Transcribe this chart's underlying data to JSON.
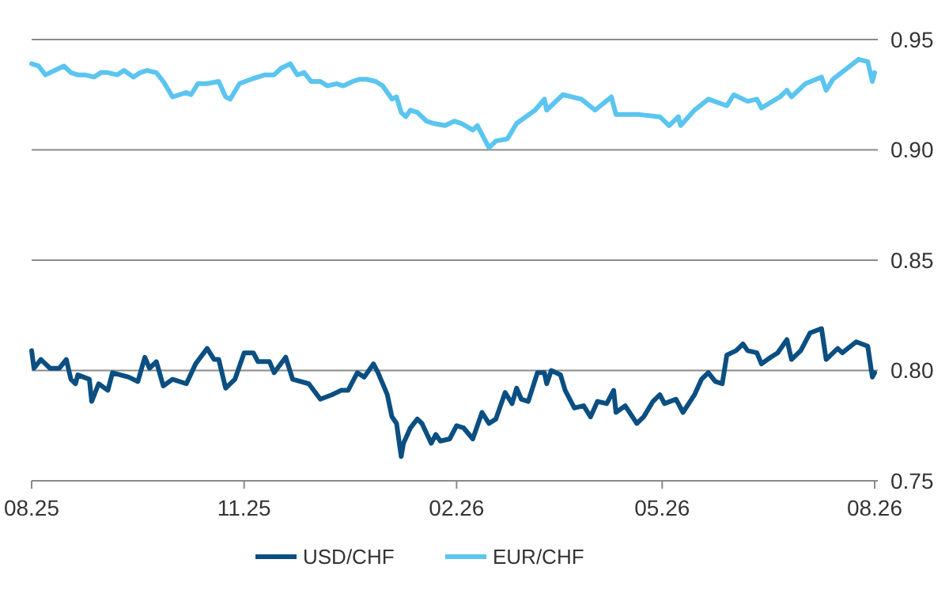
{
  "chart_data": {
    "type": "line",
    "x": [
      "2025-08-01",
      "2025-08-02",
      "2025-08-05",
      "2025-08-09",
      "2025-08-13",
      "2025-08-16",
      "2025-08-18",
      "2025-08-20",
      "2025-08-21",
      "2025-08-26",
      "2025-08-27",
      "2025-08-30",
      "2025-09-03",
      "2025-09-05",
      "2025-09-12",
      "2025-09-16",
      "2025-09-19",
      "2025-09-21",
      "2025-09-24",
      "2025-09-27",
      "2025-10-01",
      "2025-10-07",
      "2025-10-11",
      "2025-10-16",
      "2025-10-19",
      "2025-10-21",
      "2025-10-24",
      "2025-10-28",
      "2025-11-01",
      "2025-11-05",
      "2025-11-07",
      "2025-11-12",
      "2025-11-14",
      "2025-11-19",
      "2025-11-22",
      "2025-11-29",
      "2025-12-04",
      "2025-12-09",
      "2025-12-13",
      "2025-12-16",
      "2025-12-20",
      "2025-12-23",
      "2025-12-27",
      "2025-12-29",
      "2026-01-02",
      "2026-01-04",
      "2026-01-06",
      "2026-01-08",
      "2026-01-09",
      "2026-01-12",
      "2026-01-15",
      "2026-01-17",
      "2026-01-21",
      "2026-01-23",
      "2026-01-25",
      "2026-01-29",
      "2026-02-01",
      "2026-02-04",
      "2026-02-08",
      "2026-02-12",
      "2026-02-15",
      "2026-02-18",
      "2026-02-22",
      "2026-02-25",
      "2026-02-27",
      "2026-03-01",
      "2026-03-04",
      "2026-03-08",
      "2026-03-11",
      "2026-03-12",
      "2026-03-14",
      "2026-03-18",
      "2026-03-20",
      "2026-03-24",
      "2026-03-28",
      "2026-03-31",
      "2026-04-03",
      "2026-04-07",
      "2026-04-10",
      "2026-04-11",
      "2026-04-15",
      "2026-04-20",
      "2026-04-23",
      "2026-04-27",
      "2026-04-30",
      "2026-05-02",
      "2026-05-07",
      "2026-05-10",
      "2026-05-15",
      "2026-05-18",
      "2026-05-21",
      "2026-05-24",
      "2026-05-27",
      "2026-05-29",
      "2026-06-02",
      "2026-06-05",
      "2026-06-07",
      "2026-06-11",
      "2026-06-13",
      "2026-06-17",
      "2026-06-20",
      "2026-06-24",
      "2026-06-26",
      "2026-06-30",
      "2026-07-04",
      "2026-07-09",
      "2026-07-11",
      "2026-07-15",
      "2026-07-16",
      "2026-07-18",
      "2026-07-24",
      "2026-07-29",
      "2026-07-31",
      "2026-08-01"
    ],
    "series": [
      {
        "name": "USD/CHF",
        "color": "#0b4f82",
        "values": [
          0.809,
          0.801,
          0.805,
          0.801,
          0.801,
          0.805,
          0.796,
          0.794,
          0.798,
          0.796,
          0.786,
          0.794,
          0.791,
          0.799,
          0.797,
          0.795,
          0.806,
          0.801,
          0.804,
          0.793,
          0.796,
          0.794,
          0.803,
          0.81,
          0.805,
          0.805,
          0.792,
          0.796,
          0.808,
          0.808,
          0.804,
          0.804,
          0.799,
          0.806,
          0.796,
          0.794,
          0.787,
          0.789,
          0.791,
          0.791,
          0.799,
          0.797,
          0.803,
          0.799,
          0.789,
          0.779,
          0.776,
          0.761,
          0.767,
          0.774,
          0.778,
          0.776,
          0.767,
          0.771,
          0.768,
          0.769,
          0.775,
          0.774,
          0.769,
          0.781,
          0.776,
          0.778,
          0.79,
          0.785,
          0.792,
          0.787,
          0.786,
          0.799,
          0.799,
          0.794,
          0.8,
          0.798,
          0.791,
          0.783,
          0.784,
          0.779,
          0.786,
          0.785,
          0.791,
          0.781,
          0.784,
          0.776,
          0.779,
          0.786,
          0.789,
          0.785,
          0.787,
          0.781,
          0.789,
          0.796,
          0.799,
          0.795,
          0.794,
          0.807,
          0.809,
          0.812,
          0.809,
          0.808,
          0.803,
          0.806,
          0.808,
          0.814,
          0.805,
          0.809,
          0.817,
          0.819,
          0.805,
          0.809,
          0.81,
          0.808,
          0.813,
          0.811,
          0.797,
          0.799
        ]
      },
      {
        "name": "EUR/CHF",
        "color": "#5bc5ef",
        "x": [
          "2025-08-01",
          "2025-08-04",
          "2025-08-07",
          "2025-08-11",
          "2025-08-15",
          "2025-08-18",
          "2025-08-21",
          "2025-08-24",
          "2025-08-28",
          "2025-08-31",
          "2025-09-03",
          "2025-09-07",
          "2025-09-10",
          "2025-09-14",
          "2025-09-17",
          "2025-09-20",
          "2025-09-24",
          "2025-09-27",
          "2025-10-01",
          "2025-10-04",
          "2025-10-07",
          "2025-10-09",
          "2025-10-12",
          "2025-10-16",
          "2025-10-21",
          "2025-10-24",
          "2025-10-26",
          "2025-10-30",
          "2025-11-04",
          "2025-11-07",
          "2025-11-10",
          "2025-11-14",
          "2025-11-17",
          "2025-11-21",
          "2025-11-24",
          "2025-11-27",
          "2025-11-30",
          "2025-12-04",
          "2025-12-07",
          "2025-12-11",
          "2025-12-14",
          "2025-12-18",
          "2025-12-21",
          "2025-12-24",
          "2025-12-28",
          "2025-12-31",
          "2026-01-04",
          "2026-01-06",
          "2026-01-08",
          "2026-01-10",
          "2026-01-12",
          "2026-01-15",
          "2026-01-19",
          "2026-01-22",
          "2026-01-27",
          "2026-01-31",
          "2026-02-03",
          "2026-02-08",
          "2026-02-10",
          "2026-02-15",
          "2026-02-18",
          "2026-02-23",
          "2026-02-27",
          "2026-03-07",
          "2026-03-11",
          "2026-03-12",
          "2026-03-19",
          "2026-03-27",
          "2026-04-02",
          "2026-04-09",
          "2026-04-11",
          "2026-04-21",
          "2026-04-30",
          "2026-05-04",
          "2026-05-08",
          "2026-05-09",
          "2026-05-15",
          "2026-05-21",
          "2026-05-29",
          "2026-06-01",
          "2026-06-07",
          "2026-06-11",
          "2026-06-13",
          "2026-06-21",
          "2026-06-24",
          "2026-06-26",
          "2026-07-02",
          "2026-07-09",
          "2026-07-11",
          "2026-07-14",
          "2026-07-25",
          "2026-07-29",
          "2026-07-31",
          "2026-08-01"
        ],
        "values": [
          0.939,
          0.938,
          0.934,
          0.936,
          0.938,
          0.935,
          0.934,
          0.934,
          0.933,
          0.935,
          0.935,
          0.934,
          0.936,
          0.933,
          0.935,
          0.936,
          0.935,
          0.931,
          0.924,
          0.925,
          0.926,
          0.925,
          0.93,
          0.93,
          0.931,
          0.924,
          0.923,
          0.93,
          0.932,
          0.933,
          0.934,
          0.934,
          0.937,
          0.939,
          0.934,
          0.935,
          0.931,
          0.931,
          0.929,
          0.93,
          0.929,
          0.931,
          0.932,
          0.932,
          0.931,
          0.929,
          0.923,
          0.924,
          0.917,
          0.915,
          0.918,
          0.917,
          0.913,
          0.912,
          0.911,
          0.913,
          0.912,
          0.909,
          0.911,
          0.901,
          0.904,
          0.905,
          0.912,
          0.918,
          0.923,
          0.918,
          0.925,
          0.923,
          0.918,
          0.924,
          0.916,
          0.916,
          0.915,
          0.911,
          0.915,
          0.911,
          0.918,
          0.923,
          0.92,
          0.925,
          0.922,
          0.923,
          0.919,
          0.924,
          0.927,
          0.924,
          0.93,
          0.933,
          0.927,
          0.932,
          0.941,
          0.94,
          0.931,
          0.935
        ]
      }
    ],
    "xlim": [
      "2025-08-01",
      "2026-08-01"
    ],
    "xticks": [
      {
        "value": "2025-08-01",
        "label": "08.25"
      },
      {
        "value": "2025-11-01",
        "label": "11.25"
      },
      {
        "value": "2026-02-01",
        "label": "02.26"
      },
      {
        "value": "2026-05-01",
        "label": "05.26"
      },
      {
        "value": "2026-08-01",
        "label": "08.26"
      }
    ],
    "ylim": [
      0.75,
      0.95
    ],
    "yticks": [
      {
        "value": 0.75,
        "label": "0.75"
      },
      {
        "value": 0.8,
        "label": "0.80"
      },
      {
        "value": 0.85,
        "label": "0.85"
      },
      {
        "value": 0.9,
        "label": "0.90"
      },
      {
        "value": 0.95,
        "label": "0.95"
      }
    ],
    "grid": "y",
    "legend": "bottom",
    "marker": "none",
    "line_style": "solid"
  }
}
